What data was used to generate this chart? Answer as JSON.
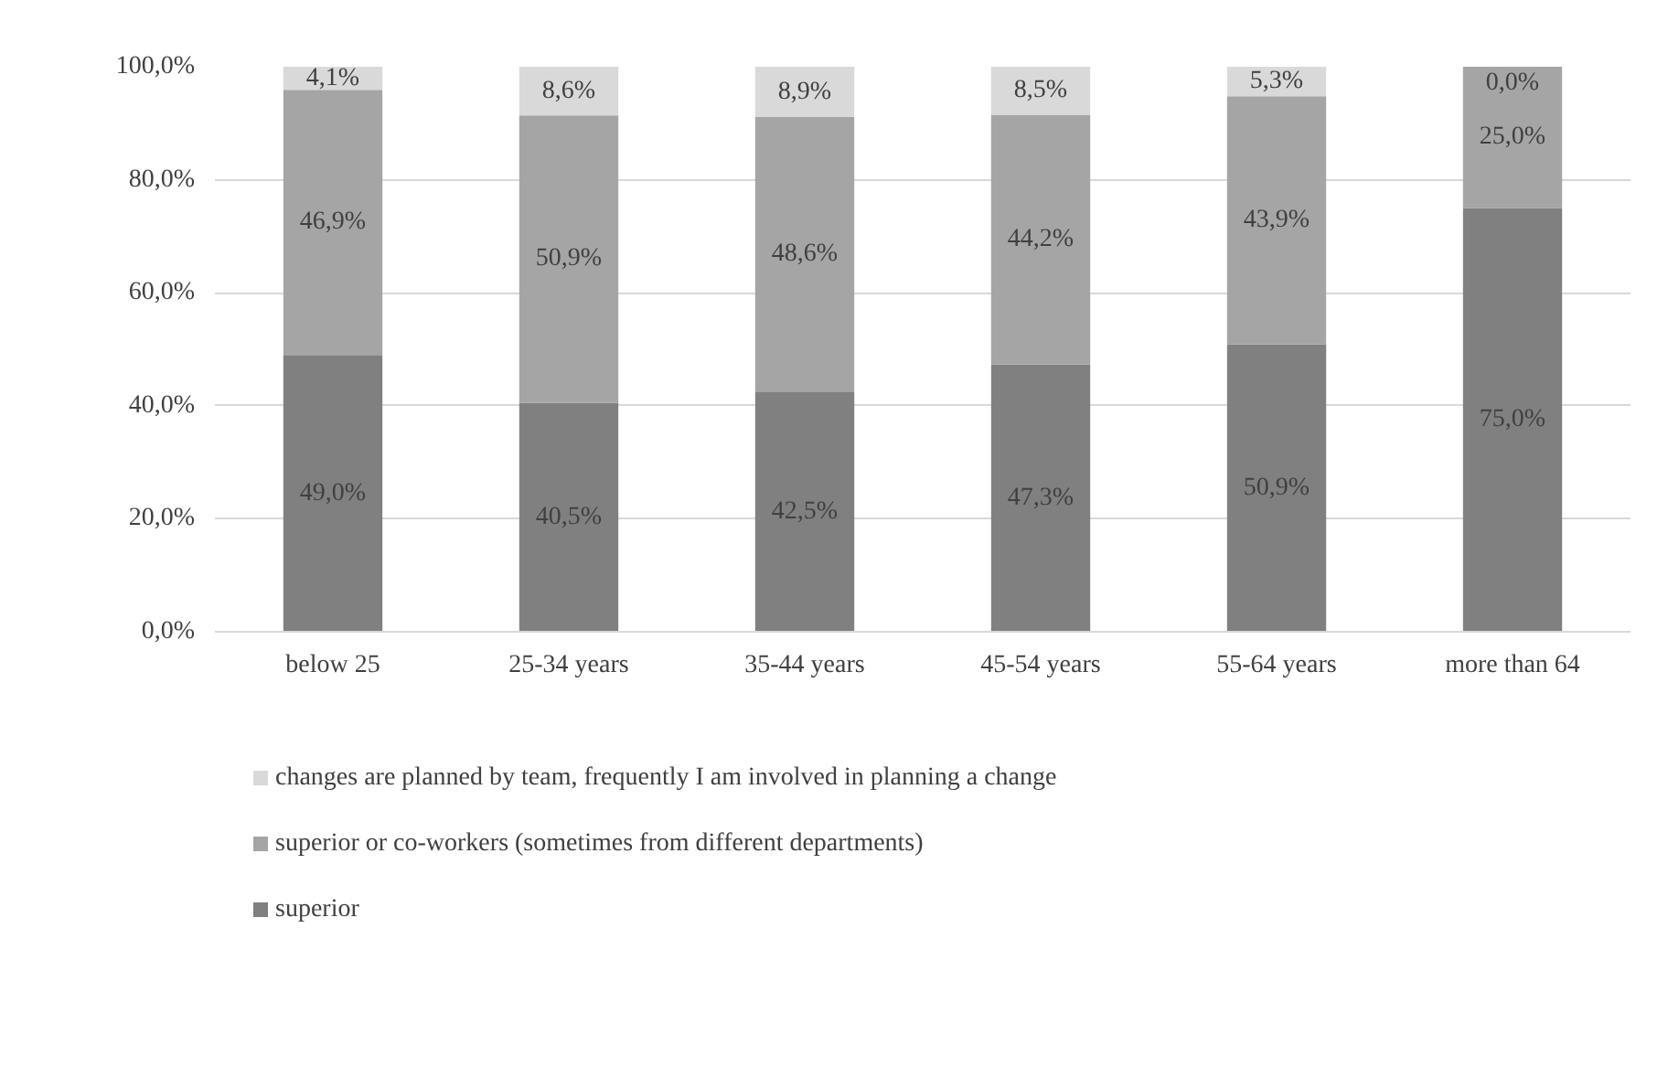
{
  "chart_data": {
    "type": "bar",
    "stacked": true,
    "categories": [
      "below 25",
      "25-34 years",
      "35-44 years",
      "45-54 years",
      "55-64 years",
      "more than 64"
    ],
    "series": [
      {
        "name": "superior",
        "color": "#808080",
        "values": [
          49.0,
          40.5,
          42.5,
          47.3,
          50.9,
          75.0
        ],
        "value_labels": [
          "49,0%",
          "40,5%",
          "42,5%",
          "47,3%",
          "50,9%",
          "75,0%"
        ]
      },
      {
        "name": "superior or co-workers (sometimes from different departments)",
        "color": "#a5a5a5",
        "values": [
          46.9,
          50.9,
          48.6,
          44.2,
          43.9,
          25.0
        ],
        "value_labels": [
          "46,9%",
          "50,9%",
          "48,6%",
          "44,2%",
          "43,9%",
          "25,0%"
        ]
      },
      {
        "name": "changes are planned by team, frequently I am involved in planning a change",
        "color": "#d9d9d9",
        "values": [
          4.1,
          8.6,
          8.9,
          8.5,
          5.3,
          0.0
        ],
        "value_labels": [
          "4,1%",
          "8,6%",
          "8,9%",
          "8,5%",
          "5,3%",
          "0,0%"
        ]
      }
    ],
    "ylim": [
      0,
      100
    ],
    "yticks": [
      {
        "value": 0,
        "label": "0,0%"
      },
      {
        "value": 20,
        "label": "20,0%"
      },
      {
        "value": 40,
        "label": "40,0%"
      },
      {
        "value": 60,
        "label": "60,0%"
      },
      {
        "value": 80,
        "label": "80,0%"
      },
      {
        "value": 100,
        "label": "100,0%"
      }
    ],
    "grid": "y",
    "legend": "bottom"
  }
}
